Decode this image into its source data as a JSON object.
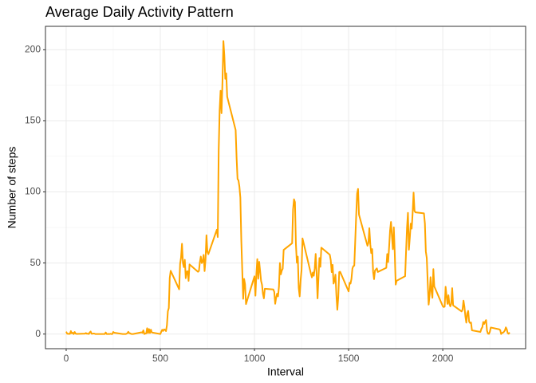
{
  "chart_data": {
    "type": "line",
    "title": "Average Daily Activity Pattern",
    "x_label": "Interval",
    "y_label": "Number of steps",
    "xlim": [
      -110,
      2440
    ],
    "ylim": [
      -10.3,
      216.5
    ],
    "xticks": [
      0,
      500,
      1000,
      1500,
      2000
    ],
    "yticks": [
      0,
      50,
      100,
      150,
      200
    ],
    "x_minor_ticks": [
      250,
      750,
      1250,
      1750,
      2250
    ],
    "y_minor_ticks": [
      25,
      75,
      125,
      175
    ],
    "grid": true,
    "series": [
      {
        "color": "#FFA500",
        "x": [
          0,
          5,
          10,
          15,
          20,
          25,
          30,
          35,
          40,
          45,
          50,
          55,
          100,
          105,
          110,
          115,
          120,
          125,
          130,
          135,
          140,
          145,
          150,
          155,
          200,
          205,
          210,
          215,
          220,
          225,
          230,
          235,
          240,
          245,
          250,
          255,
          300,
          305,
          310,
          315,
          320,
          325,
          330,
          335,
          340,
          345,
          350,
          355,
          400,
          405,
          410,
          415,
          420,
          425,
          430,
          435,
          440,
          445,
          450,
          455,
          500,
          505,
          510,
          515,
          520,
          525,
          530,
          535,
          540,
          545,
          550,
          555,
          600,
          605,
          610,
          615,
          620,
          625,
          630,
          635,
          640,
          645,
          650,
          655,
          700,
          705,
          710,
          715,
          720,
          725,
          730,
          735,
          740,
          745,
          750,
          755,
          800,
          805,
          810,
          815,
          820,
          825,
          830,
          835,
          840,
          845,
          850,
          855,
          900,
          905,
          910,
          915,
          920,
          925,
          930,
          935,
          940,
          945,
          950,
          955,
          1000,
          1005,
          1010,
          1015,
          1020,
          1025,
          1030,
          1035,
          1040,
          1045,
          1050,
          1055,
          1100,
          1105,
          1110,
          1115,
          1120,
          1125,
          1130,
          1135,
          1140,
          1145,
          1150,
          1155,
          1200,
          1205,
          1210,
          1215,
          1220,
          1225,
          1230,
          1235,
          1240,
          1245,
          1250,
          1255,
          1300,
          1305,
          1310,
          1315,
          1320,
          1325,
          1330,
          1335,
          1340,
          1345,
          1350,
          1355,
          1400,
          1405,
          1410,
          1415,
          1420,
          1425,
          1430,
          1435,
          1440,
          1445,
          1450,
          1455,
          1500,
          1505,
          1510,
          1515,
          1520,
          1525,
          1530,
          1535,
          1540,
          1545,
          1550,
          1555,
          1600,
          1605,
          1610,
          1615,
          1620,
          1625,
          1630,
          1635,
          1640,
          1645,
          1650,
          1655,
          1700,
          1705,
          1710,
          1715,
          1720,
          1725,
          1730,
          1735,
          1740,
          1745,
          1750,
          1755,
          1800,
          1805,
          1810,
          1815,
          1820,
          1825,
          1830,
          1835,
          1840,
          1845,
          1850,
          1855,
          1900,
          1905,
          1910,
          1915,
          1920,
          1925,
          1930,
          1935,
          1940,
          1945,
          1950,
          1955,
          2000,
          2005,
          2010,
          2015,
          2020,
          2025,
          2030,
          2035,
          2040,
          2045,
          2050,
          2055,
          2100,
          2105,
          2110,
          2115,
          2120,
          2125,
          2130,
          2135,
          2140,
          2145,
          2150,
          2155,
          2200,
          2205,
          2210,
          2215,
          2220,
          2225,
          2230,
          2235,
          2240,
          2245,
          2250,
          2255,
          2300,
          2305,
          2310,
          2315,
          2320,
          2325,
          2330,
          2335,
          2340,
          2345,
          2350,
          2355
        ],
        "values": [
          1.7,
          0.3,
          0.1,
          0.2,
          0.1,
          2.1,
          0.5,
          0.9,
          0,
          1.5,
          0.3,
          0.1,
          0.3,
          0.7,
          0.2,
          0.3,
          0,
          1.1,
          1.8,
          0.2,
          0.2,
          0.4,
          0.3,
          0,
          0,
          0,
          1.1,
          0,
          0,
          0.1,
          0,
          0.2,
          0,
          0,
          1.5,
          0.9,
          0,
          0,
          0,
          0,
          0.2,
          0.6,
          1.6,
          0.6,
          0.5,
          0.1,
          0,
          0,
          1.2,
          0.9,
          2.6,
          0,
          0.3,
          0.4,
          4.1,
          0.7,
          3.5,
          0.8,
          3.1,
          1.1,
          0,
          1.6,
          3.0,
          2.2,
          3.3,
          3.0,
          2.1,
          6.1,
          16.0,
          18.3,
          39.5,
          44.5,
          31.5,
          49.3,
          53.8,
          63.5,
          50.0,
          47.1,
          52.2,
          39.3,
          44.0,
          44.2,
          37.4,
          49.0,
          43.8,
          44.4,
          50.5,
          54.5,
          49.9,
          51.0,
          55.7,
          44.3,
          52.3,
          69.5,
          57.8,
          56.2,
          73.4,
          68.2,
          129.4,
          157.5,
          171.2,
          155.4,
          177.3,
          206.2,
          195.9,
          179.6,
          183.4,
          167.0,
          143.5,
          124.0,
          109.1,
          108.1,
          103.7,
          96.0,
          66.2,
          45.2,
          24.8,
          38.8,
          35.0,
          21.1,
          40.6,
          27.0,
          42.0,
          52.7,
          38.9,
          50.8,
          44.3,
          37.4,
          34.7,
          28.3,
          25.1,
          31.9,
          31.4,
          29.7,
          21.3,
          25.5,
          28.4,
          26.5,
          33.4,
          50.0,
          42.0,
          44.6,
          46.0,
          59.2,
          63.9,
          87.7,
          94.8,
          92.8,
          63.4,
          50.2,
          54.5,
          32.4,
          26.5,
          37.7,
          45.1,
          67.3,
          42.3,
          39.9,
          43.3,
          41.0,
          46.2,
          56.4,
          42.8,
          25.1,
          40.0,
          53.5,
          47.3,
          60.8,
          55.8,
          52.0,
          43.6,
          48.7,
          35.5,
          37.5,
          41.8,
          27.5,
          17.1,
          26.1,
          43.6,
          43.8,
          30.0,
          36.1,
          35.5,
          38.8,
          46.0,
          47.8,
          48.1,
          65.3,
          82.9,
          98.7,
          102.1,
          84.0,
          62.1,
          64.1,
          74.5,
          63.2,
          56.9,
          59.8,
          43.9,
          38.6,
          44.7,
          45.5,
          46.2,
          43.7,
          46.6,
          56.3,
          50.7,
          61.2,
          72.7,
          78.9,
          68.9,
          59.7,
          75.1,
          56.5,
          34.8,
          37.5,
          40.7,
          58.0,
          74.7,
          85.3,
          59.3,
          67.8,
          77.7,
          74.2,
          85.3,
          99.5,
          86.6,
          85.6,
          84.9,
          77.8,
          58.0,
          53.4,
          36.3,
          20.7,
          27.4,
          40.0,
          30.2,
          25.5,
          45.7,
          33.5,
          19.6,
          19.0,
          19.3,
          33.3,
          26.8,
          21.2,
          27.3,
          21.3,
          19.5,
          21.3,
          32.3,
          20.2,
          15.9,
          17.2,
          23.5,
          19.2,
          12.5,
          8.0,
          14.7,
          16.3,
          8.7,
          7.8,
          8.1,
          2.6,
          1.5,
          3.7,
          4.8,
          8.5,
          7.1,
          8.7,
          9.8,
          2.2,
          0.3,
          0.1,
          1.6,
          4.6,
          3.3,
          2.8,
          0,
          0.8,
          1.0,
          1.6,
          2.6,
          4.7,
          3.3,
          0.6,
          0.2,
          1.1
        ]
      }
    ]
  }
}
